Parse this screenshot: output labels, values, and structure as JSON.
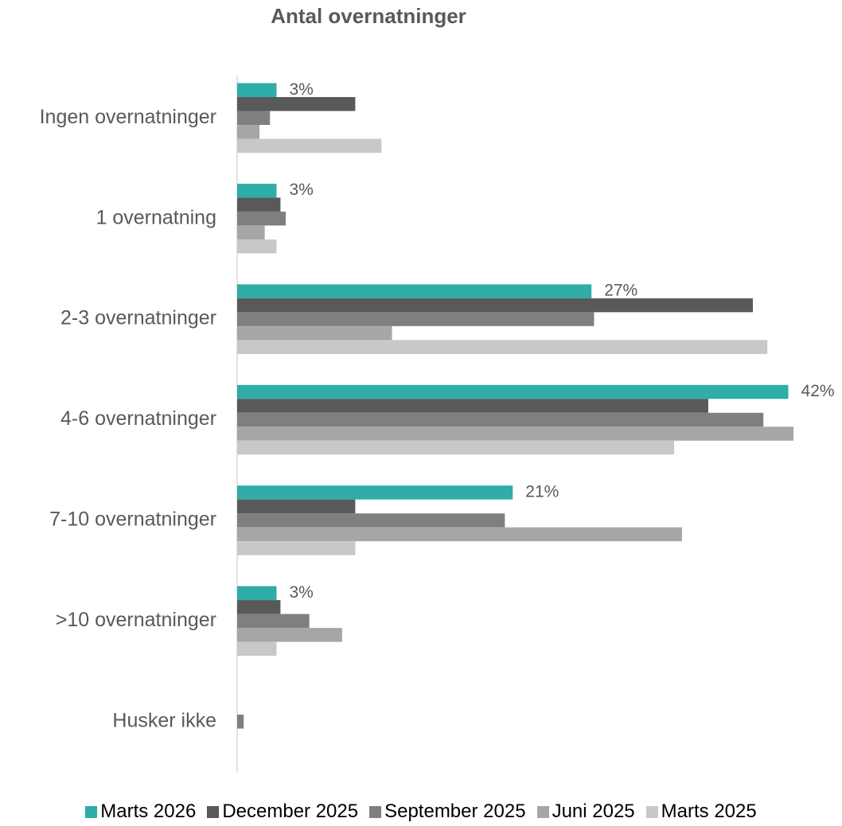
{
  "chart_data": {
    "type": "hbar",
    "title": "Antal overnatninger",
    "categories": [
      "Ingen overnatninger",
      "1 overnatning",
      "2-3 overnatninger",
      "4-6 overnatninger",
      "7-10 overnatninger",
      ">10 overnatninger",
      "Husker ikke"
    ],
    "series": [
      {
        "name": "Marts 2026",
        "color": "#2eada9",
        "values": [
          3,
          3,
          27,
          42,
          21,
          3,
          0
        ],
        "value_labels": [
          "3%",
          "3%",
          "27%",
          "42%",
          "21%",
          "3%",
          null
        ]
      },
      {
        "name": "December 2025",
        "color": "#595959",
        "values": [
          9,
          3.3,
          39.3,
          35.9,
          9,
          3.3,
          0
        ]
      },
      {
        "name": "September 2025",
        "color": "#7f7f7f",
        "values": [
          2.5,
          3.7,
          27.2,
          40.1,
          20.4,
          5.5,
          0.5
        ]
      },
      {
        "name": "Juni 2025",
        "color": "#a6a6a6",
        "values": [
          1.7,
          2.1,
          11.8,
          42.4,
          33.9,
          8,
          0
        ]
      },
      {
        "name": "Marts 2025",
        "color": "#c8c8c8",
        "values": [
          11,
          3,
          40.4,
          33.3,
          9,
          3,
          0
        ]
      }
    ],
    "xlim": [
      0,
      45
    ],
    "legend": "bottom"
  }
}
